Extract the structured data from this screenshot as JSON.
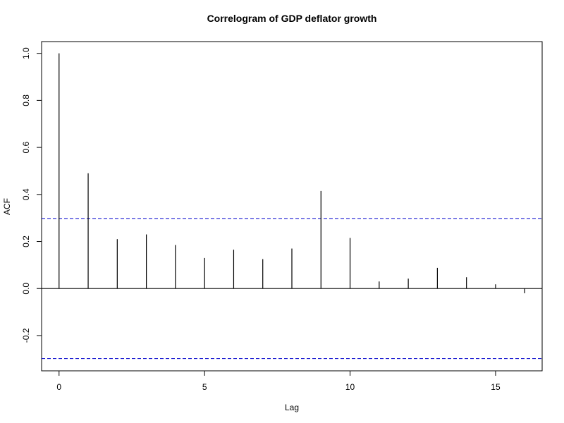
{
  "chart_data": {
    "type": "bar",
    "title": "Correlogram of GDP deflator growth",
    "xlabel": "Lag",
    "ylabel": "ACF",
    "lags": [
      0,
      1,
      2,
      3,
      4,
      5,
      6,
      7,
      8,
      9,
      10,
      11,
      12,
      13,
      14,
      15,
      16
    ],
    "values": [
      1.0,
      0.49,
      0.21,
      0.23,
      0.185,
      0.13,
      0.165,
      0.125,
      0.17,
      0.415,
      0.215,
      0.03,
      0.042,
      0.088,
      0.048,
      0.018,
      -0.02
    ],
    "xlim": [
      -0.6,
      16.6
    ],
    "ylim": [
      -0.35,
      1.05
    ],
    "xticks": [
      0,
      5,
      10,
      15
    ],
    "xtick_labels": [
      "0",
      "5",
      "10",
      "15"
    ],
    "yticks": [
      -0.2,
      0.0,
      0.2,
      0.4,
      0.6,
      0.8,
      1.0
    ],
    "ytick_labels": [
      "-0.2",
      "0.0",
      "0.2",
      "0.4",
      "0.6",
      "0.8",
      "1.0"
    ],
    "confidence_bound": 0.298,
    "grid": false,
    "colors": {
      "bars": "#000000",
      "confidence": "#0000cc",
      "zero_line": "#000000",
      "frame": "#000000"
    }
  }
}
